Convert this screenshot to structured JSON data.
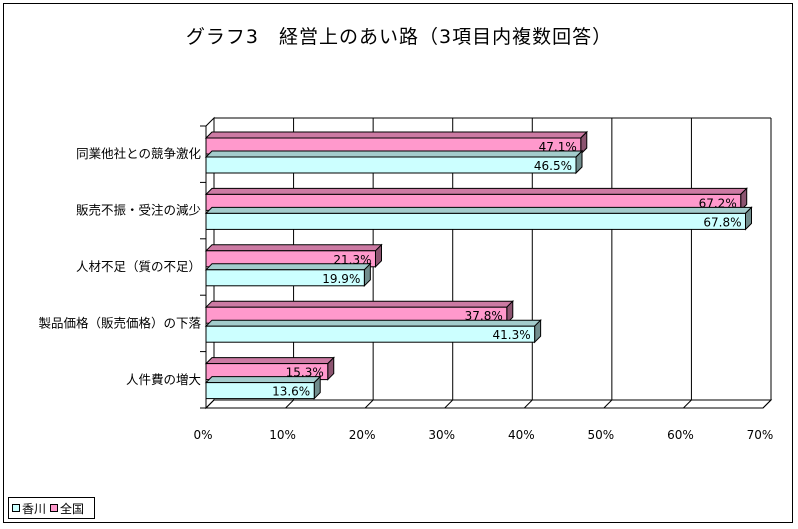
{
  "chart_data": {
    "type": "bar",
    "orientation": "horizontal",
    "title": "グラフ3　経営上のあい路（3項目内複数回答）",
    "categories": [
      "同業他社との競争激化",
      "販売不振・受注の減少",
      "人材不足（質の不足）",
      "製品価格（販売価格）の下落",
      "人件費の増大"
    ],
    "series": [
      {
        "name": "全国",
        "color": "#ff99cc",
        "values": [
          47.1,
          67.2,
          21.3,
          37.8,
          15.3
        ],
        "labels": [
          "47.1%",
          "67.2%",
          "21.3%",
          "37.8%",
          "15.3%"
        ]
      },
      {
        "name": "香川",
        "color": "#ccffff",
        "values": [
          46.5,
          67.8,
          19.9,
          41.3,
          13.6
        ],
        "labels": [
          "46.5%",
          "67.8%",
          "19.9%",
          "41.3%",
          "13.6%"
        ]
      }
    ],
    "xlim": [
      0,
      70
    ],
    "xticks": [
      "0%",
      "10%",
      "20%",
      "30%",
      "40%",
      "50%",
      "60%",
      "70%"
    ],
    "grid": true,
    "legend_position": "bottom-left",
    "legend_order": [
      "香川",
      "全国"
    ]
  }
}
